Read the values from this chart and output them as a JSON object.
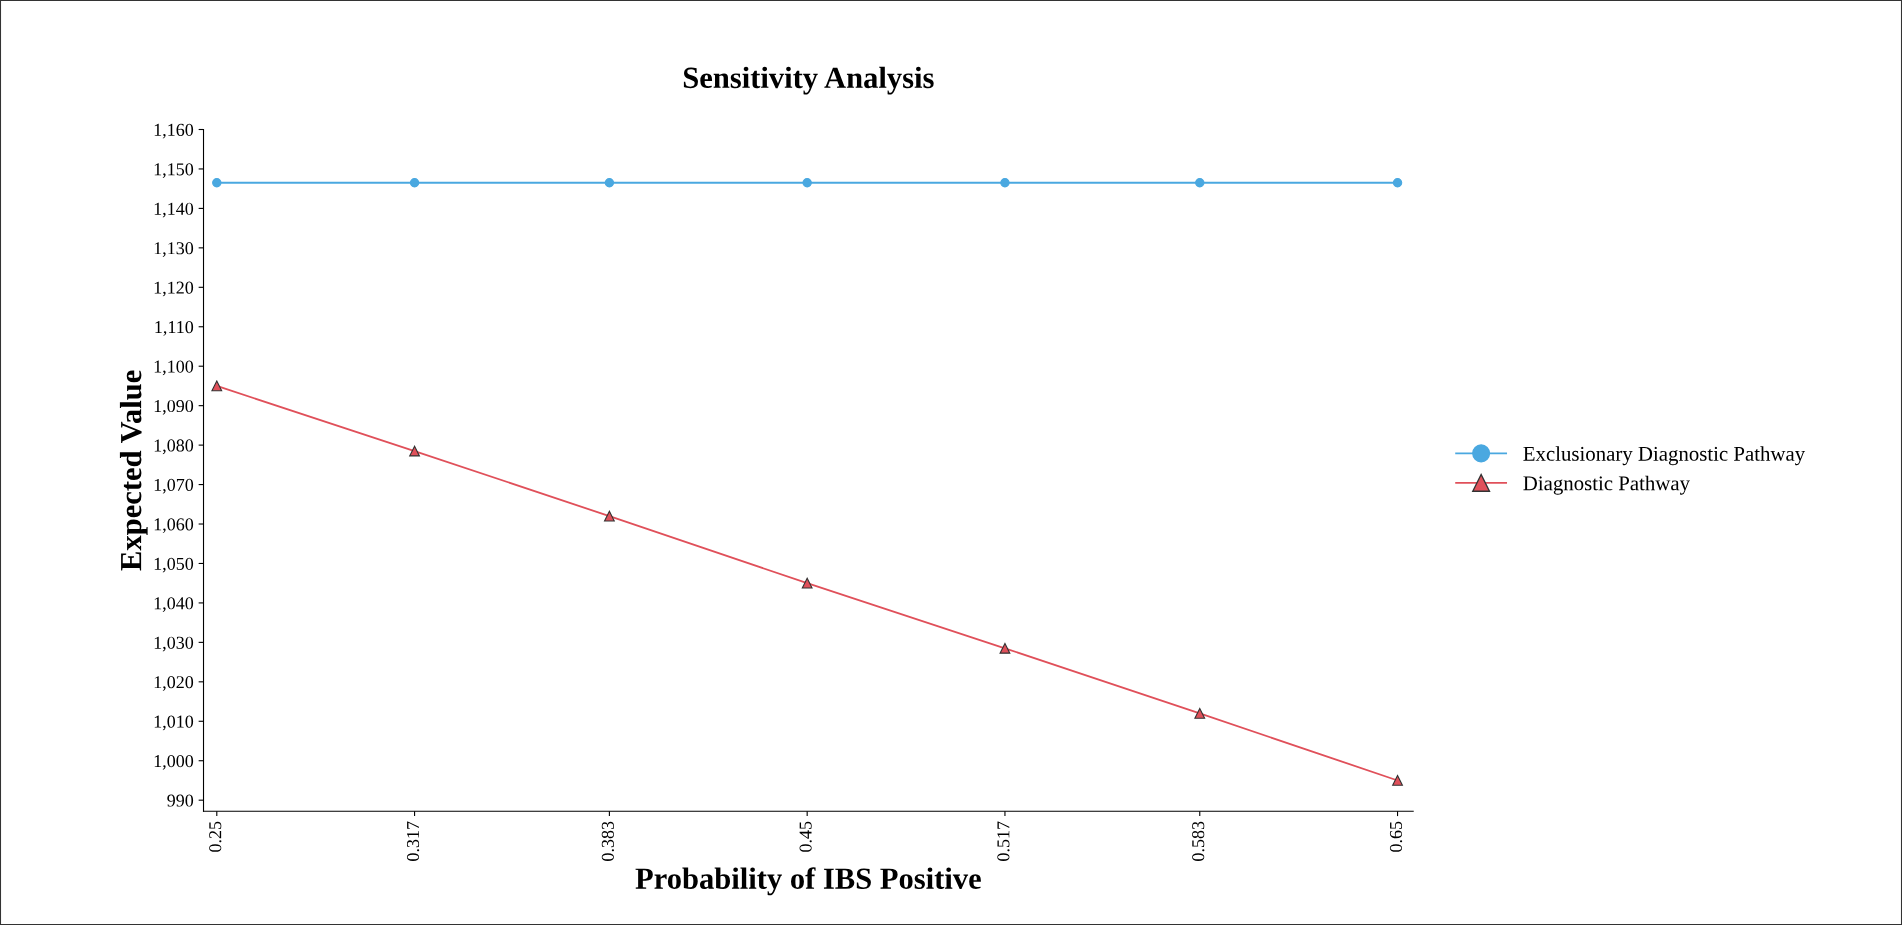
{
  "chart_data": {
    "type": "line",
    "title": "Sensitivity Analysis",
    "xlabel": "Probability of IBS Positive",
    "ylabel": "Expected Value",
    "x": [
      0.25,
      0.317,
      0.383,
      0.45,
      0.517,
      0.583,
      0.65
    ],
    "series": [
      {
        "name": "Exclusionary Diagnostic Pathway",
        "color": "#4aa8e0",
        "marker": "circle",
        "values": [
          1146.5,
          1146.5,
          1146.5,
          1146.5,
          1146.5,
          1146.5,
          1146.5
        ]
      },
      {
        "name": "Diagnostic Pathway",
        "color": "#e0505a",
        "marker": "triangle",
        "values": [
          1095,
          1078.5,
          1062,
          1045,
          1028.5,
          1012,
          995
        ]
      }
    ],
    "xlim": [
      0.2455,
      0.6553
    ],
    "xticks": [
      0.25,
      0.317,
      0.383,
      0.45,
      0.517,
      0.583,
      0.65
    ],
    "ylim": [
      987.2,
      1160
    ],
    "yticks": [
      {
        "value": 990,
        "label": "990"
      },
      {
        "value": 1000,
        "label": "1,000"
      },
      {
        "value": 1010,
        "label": "1,010"
      },
      {
        "value": 1020,
        "label": "1,020"
      },
      {
        "value": 1030,
        "label": "1,030"
      },
      {
        "value": 1040,
        "label": "1,040"
      },
      {
        "value": 1050,
        "label": "1,050"
      },
      {
        "value": 1060,
        "label": "1,060"
      },
      {
        "value": 1070,
        "label": "1,070"
      },
      {
        "value": 1080,
        "label": "1,080"
      },
      {
        "value": 1090,
        "label": "1,090"
      },
      {
        "value": 1100,
        "label": "1,100"
      },
      {
        "value": 1110,
        "label": "1,110"
      },
      {
        "value": 1120,
        "label": "1,120"
      },
      {
        "value": 1130,
        "label": "1,130"
      },
      {
        "value": 1140,
        "label": "1,140"
      },
      {
        "value": 1150,
        "label": "1,150"
      },
      {
        "value": 1160,
        "label": "1,160"
      }
    ],
    "grid": false,
    "legend": "right",
    "line_style": "solid"
  }
}
